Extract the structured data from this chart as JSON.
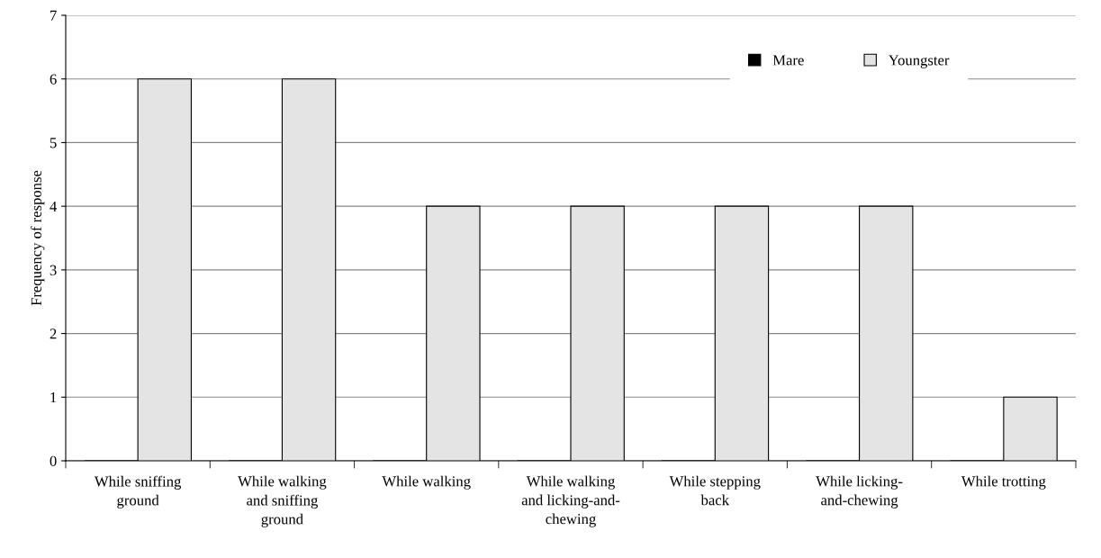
{
  "chart_data": {
    "type": "bar",
    "ylabel": "Frequency of response",
    "categories": [
      "While sniffing\nground",
      "While walking\nand sniffing\nground",
      "While walking",
      "While walking\nand licking-and-\nchewing",
      "While stepping\nback",
      "While licking-\nand-chewing",
      "While trotting"
    ],
    "series": [
      {
        "name": "Mare",
        "color": "#000000",
        "values": [
          0,
          0,
          0,
          0,
          0,
          0,
          0
        ]
      },
      {
        "name": "Youngster",
        "color": "#e4e4e4",
        "values": [
          6,
          6,
          4,
          4,
          4,
          4,
          1
        ]
      }
    ],
    "ylim": [
      0,
      7
    ],
    "yticks": [
      0,
      1,
      2,
      3,
      4,
      5,
      6,
      7
    ],
    "grid": "y",
    "legend": "top right"
  }
}
